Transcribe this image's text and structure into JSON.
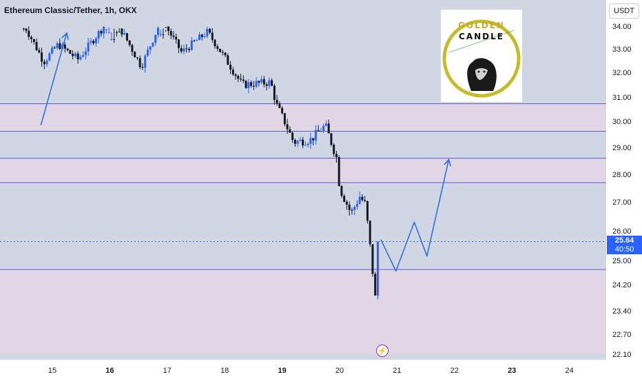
{
  "header": {
    "title": "Ethereum Classic/Tether, 1h, OKX"
  },
  "toolbar": {
    "currency_label": "USDT"
  },
  "logo": {
    "line1": "GOLDEN",
    "line2": "CANDLE"
  },
  "current_price": {
    "value": "25.64",
    "countdown": "40:50"
  },
  "colors": {
    "background": "#d1d6e3",
    "zone_fill": "#e0d6e6",
    "level_line": "#5b5bd6",
    "candle": "#2962ff",
    "candle_down": "#131722",
    "arrow": "#2e6fe6",
    "price_label": "#2962ff",
    "logo_ring": "#c3bd2a"
  },
  "chart_data": {
    "type": "candlestick",
    "symbol": "Ethereum Classic/Tether",
    "timeframe": "1h",
    "exchange": "OKX",
    "y_ticks": [
      "34.00",
      "33.00",
      "32.00",
      "31.00",
      "30.00",
      "29.00",
      "28.00",
      "27.00",
      "26.00",
      "25.00",
      "24.20",
      "23.40",
      "22.70",
      "22.10"
    ],
    "x_ticks": [
      "15",
      "16",
      "17",
      "18",
      "19",
      "20",
      "21",
      "22",
      "23",
      "24"
    ],
    "x_ticks_bold": [
      "16",
      "19",
      "23"
    ],
    "current_price": 25.64,
    "zones": [
      {
        "from": 29.62,
        "to": 30.73
      },
      {
        "from": 27.7,
        "to": 28.6
      },
      {
        "from": 22.1,
        "to": 24.7
      }
    ],
    "levels": [
      30.73,
      29.62,
      28.6,
      27.7,
      24.7
    ],
    "key_points": [
      {
        "t": 14.5,
        "price": 34.1
      },
      {
        "t": 14.85,
        "price": 32.45
      },
      {
        "t": 15.1,
        "price": 33.2
      },
      {
        "t": 15.45,
        "price": 32.55
      },
      {
        "t": 16.05,
        "price": 34.5
      },
      {
        "t": 16.55,
        "price": 32.25
      },
      {
        "t": 16.9,
        "price": 34.3
      },
      {
        "t": 17.25,
        "price": 32.85
      },
      {
        "t": 17.7,
        "price": 33.75
      },
      {
        "t": 18.3,
        "price": 31.5
      },
      {
        "t": 18.8,
        "price": 31.6
      },
      {
        "t": 18.9,
        "price": 30.7
      },
      {
        "t": 19.2,
        "price": 29.2
      },
      {
        "t": 19.5,
        "price": 29.3
      },
      {
        "t": 19.75,
        "price": 29.85
      },
      {
        "t": 19.95,
        "price": 28.6
      },
      {
        "t": 20.0,
        "price": 27.5
      },
      {
        "t": 20.2,
        "price": 26.6
      },
      {
        "t": 20.35,
        "price": 27.2
      },
      {
        "t": 20.45,
        "price": 26.9
      },
      {
        "t": 20.55,
        "price": 25.1
      },
      {
        "t": 20.63,
        "price": 23.6
      },
      {
        "t": 20.7,
        "price": 25.64
      }
    ],
    "projection_arrow": [
      {
        "t": 20.72,
        "price": 25.7
      },
      {
        "t": 20.98,
        "price": 24.65
      },
      {
        "t": 21.3,
        "price": 26.3
      },
      {
        "t": 21.52,
        "price": 25.15
      },
      {
        "t": 21.9,
        "price": 28.55
      }
    ],
    "history_arrow": [
      {
        "t": 14.8,
        "price": 29.85
      },
      {
        "t": 15.25,
        "price": 33.7
      }
    ]
  }
}
